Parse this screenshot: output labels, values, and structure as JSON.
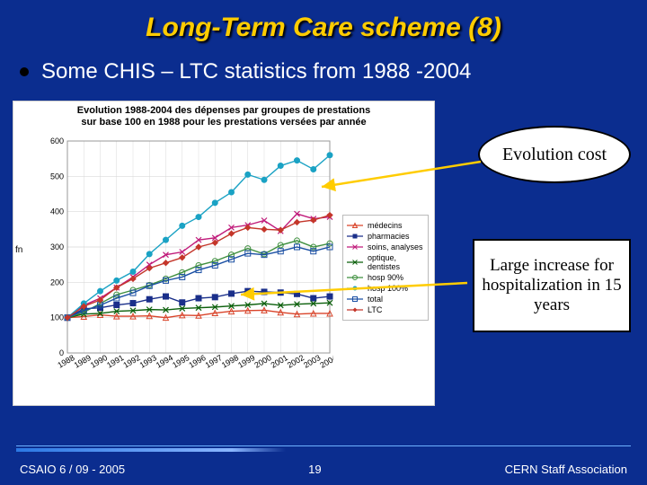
{
  "title": "Long-Term Care scheme (8)",
  "bullet": "Some CHIS – LTC  statistics from 1988 -2004",
  "chart": {
    "type": "line",
    "title_line1": "Evolution 1988-2004 des dépenses par groupes de prestations",
    "title_line2": "sur base 100 en 1988 pour les prestations versées par année",
    "ylabel_left": "fn",
    "xlim": [
      1988,
      2004
    ],
    "ylim": [
      0,
      600
    ],
    "ytick_step": 100,
    "yticks": [
      0,
      100,
      200,
      300,
      400,
      500,
      600
    ],
    "xticks": [
      1988,
      1989,
      1990,
      1991,
      1992,
      1993,
      1994,
      1995,
      1996,
      1997,
      1998,
      1999,
      2000,
      2001,
      2002,
      2003,
      2004
    ],
    "background_color": "#ffffff",
    "grid_color": "#d9d9d9",
    "line_width": 1.4,
    "marker_size": 4,
    "series": [
      {
        "key": "medecins",
        "label": "médecins",
        "color": "#d9442a",
        "marker": "triangle",
        "y": [
          100,
          103,
          108,
          104,
          104,
          105,
          100,
          107,
          106,
          113,
          118,
          120,
          121,
          115,
          110,
          112,
          112
        ]
      },
      {
        "key": "pharmacies",
        "label": "pharmacies",
        "color": "#1a2f8a",
        "marker": "square",
        "y": [
          100,
          125,
          128,
          136,
          141,
          152,
          160,
          143,
          155,
          158,
          168,
          175,
          173,
          171,
          167,
          155,
          160
        ]
      },
      {
        "key": "soins_analyses",
        "label": "soins, analyses",
        "color": "#c01a7a",
        "marker": "x",
        "y": [
          100,
          135,
          155,
          185,
          215,
          250,
          278,
          286,
          320,
          326,
          355,
          362,
          375,
          345,
          394,
          380,
          385
        ]
      },
      {
        "key": "optique_dentiste",
        "label": "optique, dentistes",
        "color": "#0a5f0a",
        "marker": "x",
        "y": [
          100,
          110,
          112,
          118,
          120,
          123,
          122,
          126,
          128,
          130,
          133,
          136,
          140,
          135,
          138,
          140,
          142
        ]
      },
      {
        "key": "hosp90",
        "label": "hosp 90%",
        "color": "#3e8f3e",
        "marker": "circle-open",
        "y": [
          100,
          115,
          140,
          165,
          178,
          192,
          210,
          228,
          248,
          260,
          278,
          296,
          280,
          305,
          318,
          300,
          310
        ]
      },
      {
        "key": "hosp100",
        "label": "hosp 100%",
        "color": "#1aa2c4",
        "marker": "circle",
        "y": [
          100,
          140,
          175,
          205,
          230,
          280,
          320,
          360,
          385,
          425,
          455,
          505,
          490,
          530,
          545,
          520,
          560
        ]
      },
      {
        "key": "total",
        "label": "total",
        "color": "#1a4fa3",
        "marker": "square-open",
        "y": [
          100,
          120,
          135,
          155,
          170,
          190,
          205,
          215,
          235,
          248,
          265,
          282,
          278,
          288,
          300,
          288,
          300
        ]
      },
      {
        "key": "ltc",
        "label": "LTC",
        "color": "#c4362a",
        "marker": "diamond",
        "y": [
          100,
          132,
          150,
          185,
          210,
          240,
          255,
          270,
          300,
          312,
          338,
          355,
          350,
          348,
          370,
          376,
          390
        ]
      }
    ],
    "legend_position": "right-middle"
  },
  "callouts": {
    "evolution": "Evolution cost",
    "large_increase": "Large increase for hospitalization in 15 years"
  },
  "arrow_color": "#ffcc00",
  "footer": {
    "left": "CSAIO 6 / 09 - 2005",
    "page": "19",
    "right": "CERN Staff Association"
  }
}
